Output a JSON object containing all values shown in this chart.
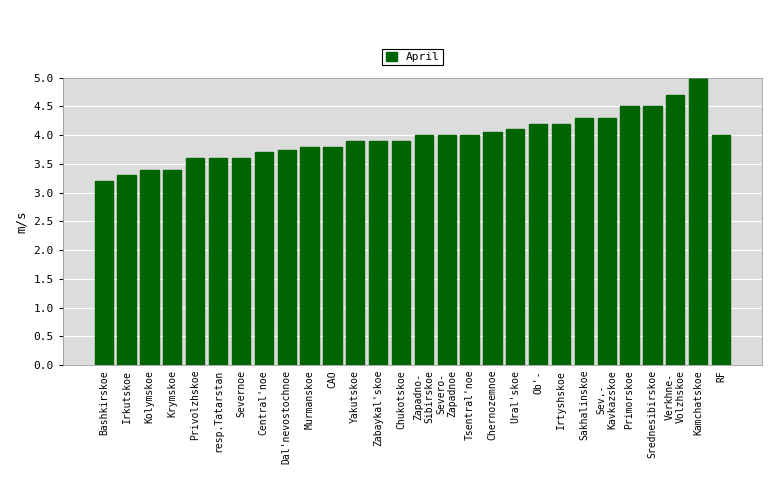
{
  "categories": [
    "Bashkirskoe",
    "Irkutskoe",
    "Kolymskoe",
    "Krymskoe",
    "Privolzhskoe",
    "resp.Tatarstan",
    "Severnoe",
    "Central'noe",
    "Dal'nevostochnoe",
    "Murmanskoe",
    "CAO",
    "Yakutskoe",
    "Zabaykal'skoe",
    "Chukotskoe",
    "Zapadno-\nSibirskoe",
    "Severo-\nZapadnoe",
    "Tsentral'noe",
    "Chernozemnoe",
    "Ural'skoe",
    "Ob'-",
    "Irtyshskoe",
    "Sakhalinskoe",
    "Sev.-\nKavkazskoe",
    "Primorskoe",
    "Srednesibirskoe",
    "Verkhne-\nVolzhskoe",
    "Kamchatskoe",
    "RF"
  ],
  "values": [
    3.2,
    3.3,
    3.4,
    3.4,
    3.6,
    3.6,
    3.6,
    3.7,
    3.75,
    3.8,
    3.8,
    3.9,
    3.9,
    3.9,
    4.0,
    4.0,
    4.0,
    4.05,
    4.1,
    4.2,
    4.2,
    4.3,
    4.3,
    4.5,
    4.5,
    4.7,
    5.0,
    4.0
  ],
  "bar_color": "#006400",
  "ylabel": "m/s",
  "ylim": [
    0,
    5.0
  ],
  "yticks": [
    0,
    0.5,
    1.0,
    1.5,
    2.0,
    2.5,
    3.0,
    3.5,
    4.0,
    4.5,
    5.0
  ],
  "legend_label": "April",
  "legend_color": "#006400",
  "fig_bg_color": "#ffffff",
  "plot_bg_color": "#dcdcdc",
  "figsize": [
    7.77,
    4.79
  ],
  "dpi": 100
}
